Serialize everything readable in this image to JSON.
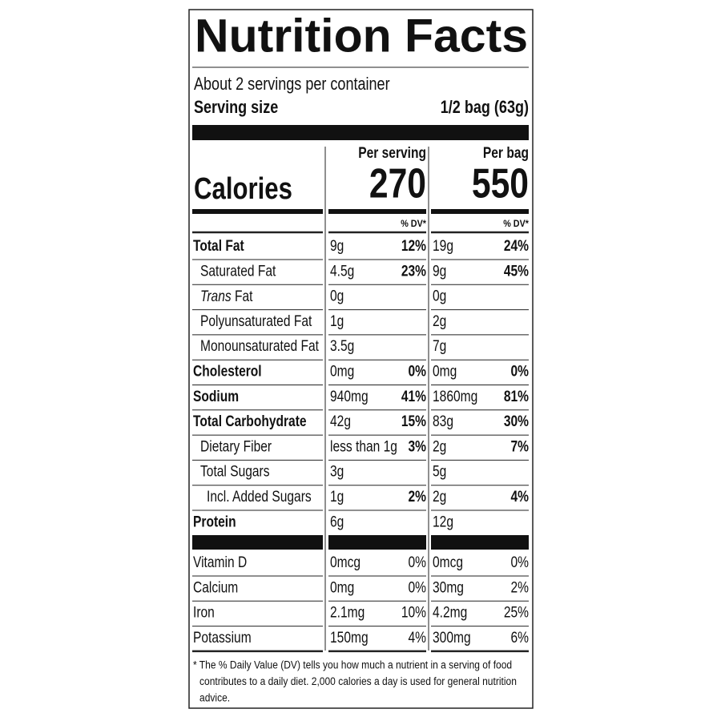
{
  "title": "Nutrition Facts",
  "servings": "About 2 servings per container",
  "serving_size_label": "Serving size",
  "serving_size": "1/2 bag (63g)",
  "columns": [
    "Per serving",
    "Per bag"
  ],
  "calories_label": "Calories",
  "calories": [
    "270",
    "550"
  ],
  "dv_header": "% DV*",
  "nutrients": [
    {
      "name": "Total Fat",
      "amounts": [
        "9g",
        "19g"
      ],
      "dv": [
        "12%",
        "24%"
      ]
    },
    {
      "name": "Saturated Fat",
      "amounts": [
        "4.5g",
        "9g"
      ],
      "dv": [
        "23%",
        "45%"
      ]
    },
    {
      "name": [
        "Trans",
        "Fat"
      ],
      "amounts": [
        "0g",
        "0g"
      ],
      "dv": [
        null,
        null
      ]
    },
    {
      "name": "Polyunsaturated Fat",
      "amounts": [
        "1g",
        "2g"
      ],
      "dv": [
        null,
        null
      ]
    },
    {
      "name": "Monounsaturated Fat",
      "amounts": [
        "3.5g",
        "7g"
      ],
      "dv": [
        null,
        null
      ]
    },
    {
      "name": "Cholesterol",
      "amounts": [
        "0mg",
        "0mg"
      ],
      "dv": [
        "0%",
        "0%"
      ]
    },
    {
      "name": "Sodium",
      "amounts": [
        "940mg",
        "1860mg"
      ],
      "dv": [
        "41%",
        "81%"
      ]
    },
    {
      "name": "Total Carbohydrate",
      "amounts": [
        "42g",
        "83g"
      ],
      "dv": [
        "15%",
        "30%"
      ]
    },
    {
      "name": "Dietary Fiber",
      "amounts": [
        "less than 1g",
        "2g"
      ],
      "dv": [
        "3%",
        "7%"
      ]
    },
    {
      "name": "Total Sugars",
      "amounts": [
        "3g",
        "5g"
      ],
      "dv": [
        null,
        null
      ]
    },
    {
      "name": "Incl. Added Sugars",
      "amounts": [
        "1g",
        "2g"
      ],
      "dv": [
        "2%",
        "4%"
      ]
    },
    {
      "name": "Protein",
      "amounts": [
        "6g",
        "12g"
      ],
      "dv": [
        null,
        null
      ]
    }
  ],
  "vitamins": [
    {
      "name": "Vitamin D",
      "amounts": [
        "0mcg",
        "0mcg"
      ],
      "dv": [
        "0%",
        "0%"
      ]
    },
    {
      "name": "Calcium",
      "amounts": [
        "0mg",
        "30mg"
      ],
      "dv": [
        "0%",
        "2%"
      ]
    },
    {
      "name": "Iron",
      "amounts": [
        "2.1mg",
        "4.2mg"
      ],
      "dv": [
        "10%",
        "25%"
      ]
    },
    {
      "name": "Potassium",
      "amounts": [
        "150mg",
        "300mg"
      ],
      "dv": [
        "4%",
        "6%"
      ]
    }
  ],
  "footnote": [
    "* The % Daily Value (DV) tells you how much a nutrient in a serving of food",
    "contributes to a daily diet. 2,000 calories a day is used for general nutrition",
    "advice."
  ]
}
